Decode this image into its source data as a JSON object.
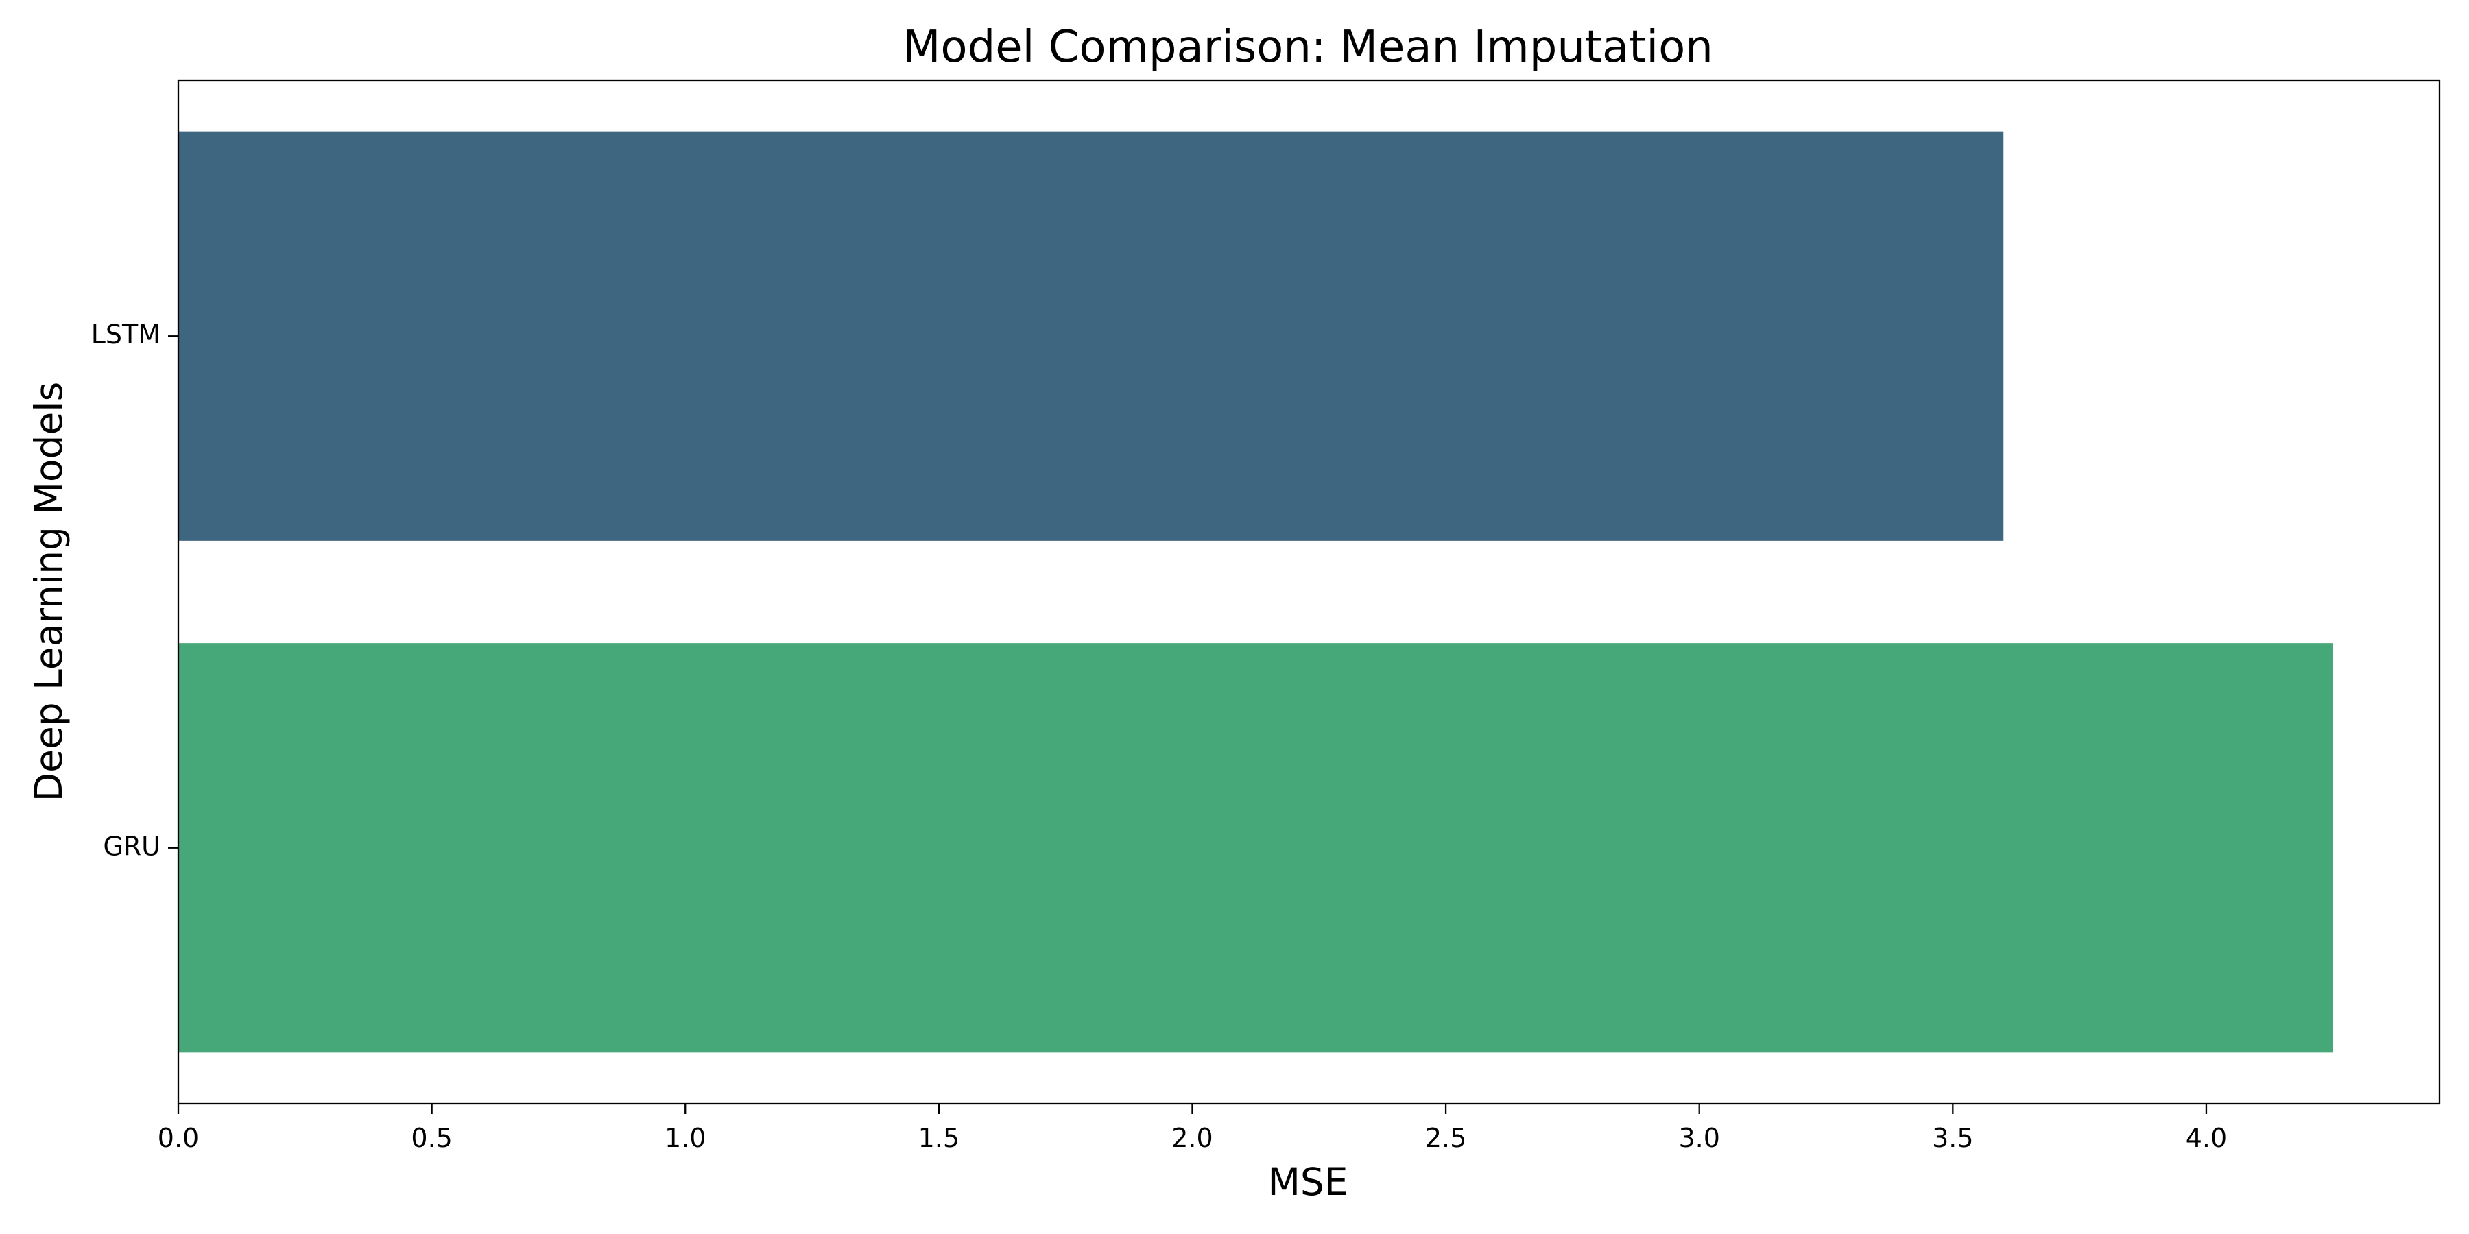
{
  "chart_data": {
    "type": "bar",
    "orientation": "horizontal",
    "title": "Model Comparison: Mean Imputation",
    "xlabel": "MSE",
    "ylabel": "Deep Learning Models",
    "categories": [
      "LSTM",
      "GRU"
    ],
    "values": [
      3.6,
      4.25
    ],
    "colors": [
      "#3e6681",
      "#46a878"
    ],
    "xlim": [
      0,
      4.46
    ],
    "xticks": [
      0.0,
      0.5,
      1.0,
      1.5,
      2.0,
      2.5,
      3.0,
      3.5,
      4.0
    ],
    "xtick_labels": [
      "0.0",
      "0.5",
      "1.0",
      "1.5",
      "2.0",
      "2.5",
      "3.0",
      "3.5",
      "4.0"
    ],
    "grid": false,
    "legend": "none"
  }
}
